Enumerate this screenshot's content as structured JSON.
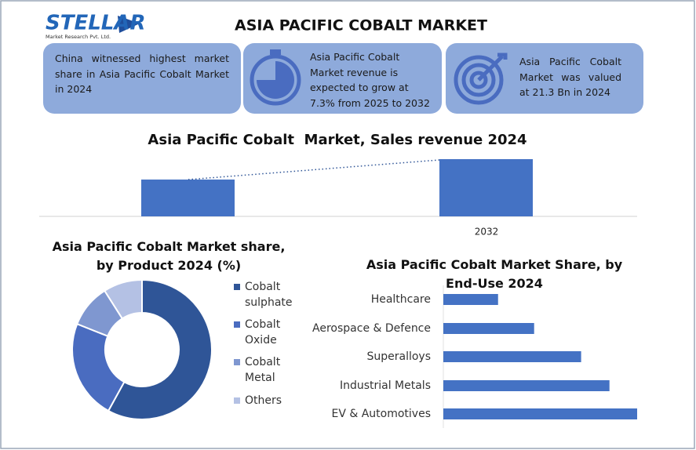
{
  "header": {
    "logo": "STELLAR",
    "logo_sub": "Market Research Pvt. Ltd.",
    "title": "ASIA PACIFIC COBALT MARKET"
  },
  "info_boxes": [
    {
      "text": "China witnessed highest market share in Asia Pacific Cobalt Market in 2024"
    },
    {
      "text": "Asia Pacific Cobalt Market revenue is expected to grow at 7.3% from 2025 to 2032"
    },
    {
      "text": "Asia Pacific Cobalt Market was valued at 21.3 Bn in 2024"
    }
  ],
  "chart_data": [
    {
      "type": "bar",
      "title": "Asia Pacific Cobalt  Market, Sales revenue 2024",
      "categories": [
        null,
        "2032"
      ],
      "values": [
        21.3,
        33.1
      ],
      "color": "#4472c4",
      "trend_line": true
    },
    {
      "type": "donut",
      "title": "Asia Pacific Cobalt Market share, by Product 2024 (%)",
      "categories": [
        "Cobalt sulphate",
        "Cobalt Oxide",
        "Cobalt Metal",
        "Others"
      ],
      "values": [
        58,
        23,
        10,
        9
      ],
      "colors": [
        "#2f5597",
        "#4a6cc0",
        "#7f97d0",
        "#b4c1e4"
      ],
      "legend": "right"
    },
    {
      "type": "hbar",
      "title": "Asia Pacific Cobalt Market Share, by End-Use 2024",
      "categories": [
        "Healthcare",
        "Aerospace & Defence",
        "Superalloys",
        "Industrial Metals",
        "EV & Automotives"
      ],
      "values": [
        8.5,
        14.1,
        21.4,
        25.8,
        30.1
      ],
      "color": "#4472c4"
    }
  ]
}
